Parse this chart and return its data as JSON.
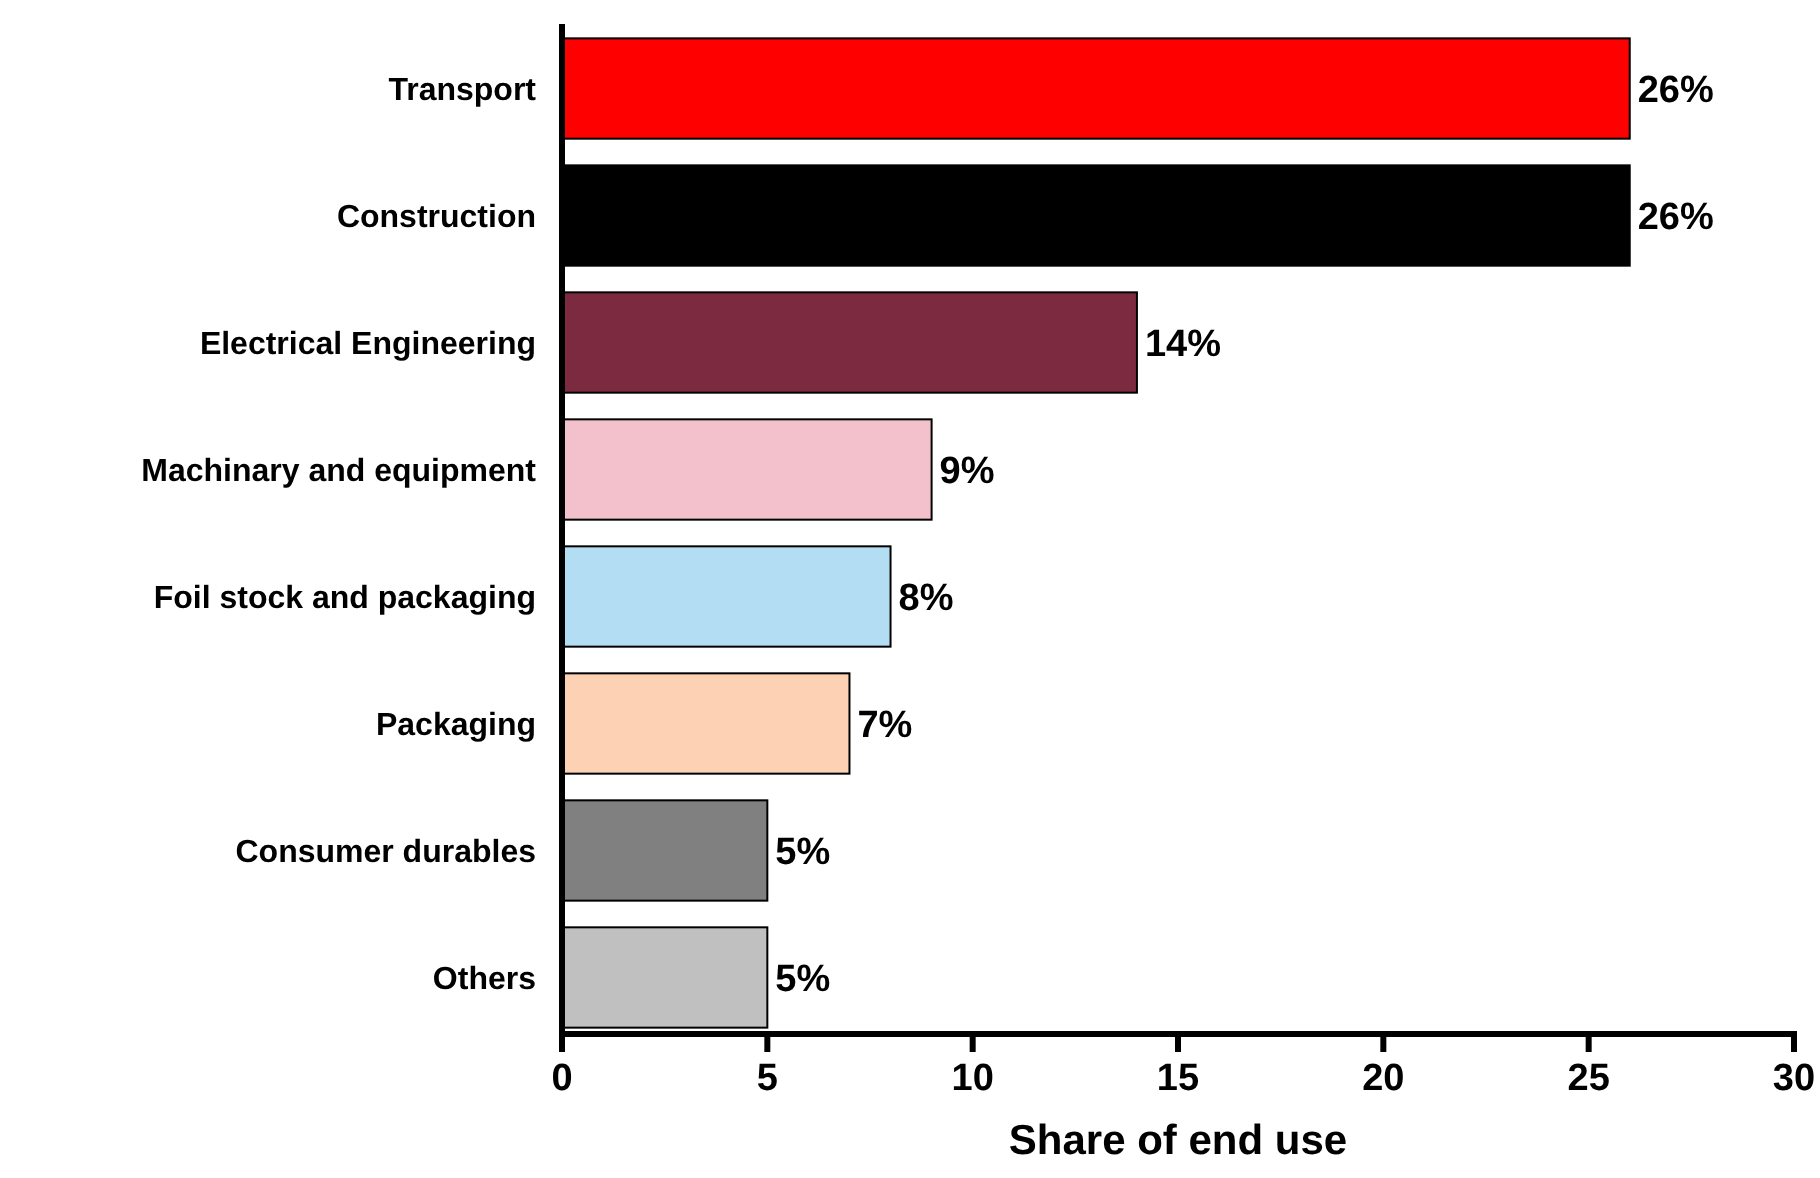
{
  "chart_data": {
    "type": "bar",
    "orientation": "horizontal",
    "xlabel": "Share of end use",
    "categories": [
      "Transport",
      "Construction",
      "Electrical Engineering",
      "Machinary and equipment",
      "Foil stock and packaging",
      "Packaging",
      "Consumer durables",
      "Others"
    ],
    "values": [
      26,
      26,
      14,
      9,
      8,
      7,
      5,
      5
    ],
    "colors": [
      "#ff0000",
      "#000000",
      "#7b2a40",
      "#f2c1cc",
      "#b3ddf3",
      "#fdd1b3",
      "#808080",
      "#c0c0c0"
    ],
    "value_labels": [
      "26%",
      "26%",
      "14%",
      "9%",
      "8%",
      "7%",
      "5%",
      "5%"
    ],
    "xlim": [
      0,
      30
    ],
    "xticks": [
      0,
      5,
      10,
      15,
      20,
      25,
      30
    ]
  }
}
